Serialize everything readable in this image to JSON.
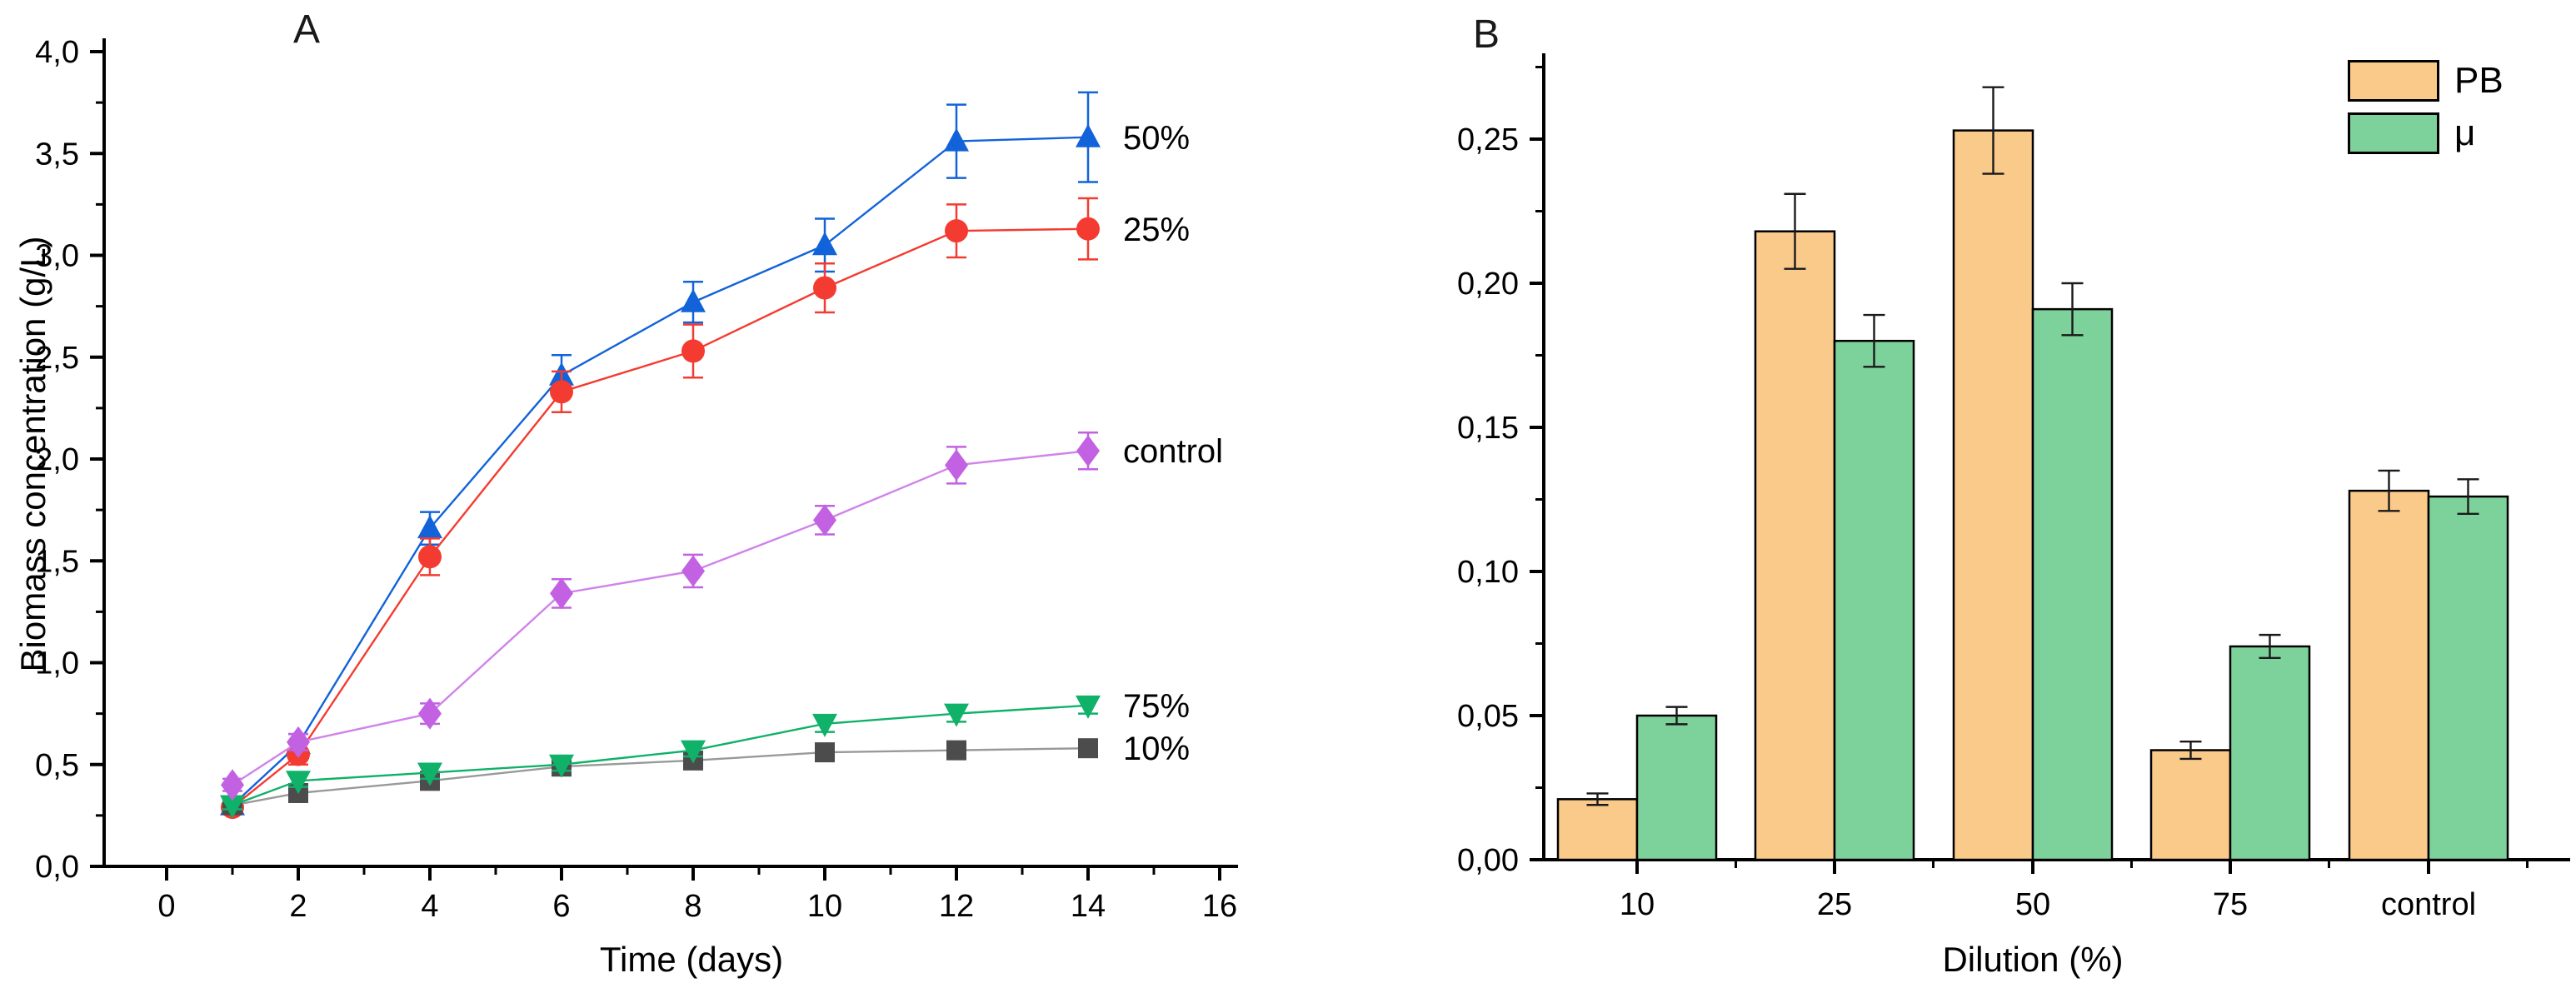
{
  "figure": {
    "background": "#ffffff"
  },
  "chart_data": [
    {
      "type": "line",
      "panel_letter": "A",
      "xlabel": "Time (days)",
      "ylabel": "Biomass concentration (g/L)",
      "x": [
        1,
        2,
        4,
        6,
        8,
        10,
        12,
        14
      ],
      "x_ticks": [
        0,
        2,
        4,
        6,
        8,
        10,
        12,
        14,
        16
      ],
      "x_tick_labels": [
        "0",
        "2",
        "4",
        "6",
        "8",
        "10",
        "12",
        "14",
        "16"
      ],
      "x_minor_ticks": [
        1,
        3,
        5,
        7,
        9,
        11,
        13,
        15
      ],
      "y_ticks": [
        0,
        0.5,
        1.0,
        1.5,
        2.0,
        2.5,
        3.0,
        3.5,
        4.0
      ],
      "y_tick_labels": [
        "0,0",
        "0,5",
        "1,0",
        "1,5",
        "2,0",
        "2,5",
        "3,0",
        "3,5",
        "4,0"
      ],
      "y_minor_ticks": [
        0.25,
        0.75,
        1.25,
        1.75,
        2.25,
        2.75,
        3.25,
        3.75
      ],
      "xlim": [
        -1,
        16.3
      ],
      "ylim": [
        0,
        4.07
      ],
      "grid": false,
      "decimal_separator": "comma",
      "series": [
        {
          "name": "50%",
          "end_label": "50%",
          "marker": "triangle-up",
          "color": "#1263D9",
          "line_color": "#1263D9",
          "values": [
            0.3,
            0.6,
            1.66,
            2.41,
            2.77,
            3.05,
            3.56,
            3.58
          ],
          "errors": [
            0.03,
            0.05,
            0.08,
            0.1,
            0.1,
            0.13,
            0.18,
            0.22
          ]
        },
        {
          "name": "25%",
          "end_label": "25%",
          "marker": "circle",
          "color": "#F43B31",
          "line_color": "#F43B31",
          "values": [
            0.29,
            0.55,
            1.52,
            2.33,
            2.53,
            2.84,
            3.12,
            3.13
          ],
          "errors": [
            0.03,
            0.05,
            0.09,
            0.1,
            0.13,
            0.12,
            0.13,
            0.15
          ]
        },
        {
          "name": "control",
          "end_label": "control",
          "marker": "diamond",
          "color": "#C262E2",
          "line_color": "#D083EA",
          "values": [
            0.4,
            0.61,
            0.75,
            1.34,
            1.45,
            1.7,
            1.97,
            2.04
          ],
          "errors": [
            0.03,
            0.04,
            0.05,
            0.07,
            0.08,
            0.07,
            0.09,
            0.09
          ]
        },
        {
          "name": "75%",
          "end_label": "75%",
          "marker": "triangle-down",
          "color": "#10B169",
          "line_color": "#10B169",
          "values": [
            0.3,
            0.42,
            0.46,
            0.5,
            0.57,
            0.7,
            0.75,
            0.79
          ],
          "errors": [
            0.02,
            0.03,
            0.03,
            0.03,
            0.03,
            0.04,
            0.04,
            0.04
          ]
        },
        {
          "name": "10%",
          "end_label": "10%",
          "marker": "square",
          "color": "#4C4C4C",
          "line_color": "#999999",
          "values": [
            0.3,
            0.36,
            0.42,
            0.49,
            0.52,
            0.56,
            0.57,
            0.58
          ],
          "errors": [
            0.02,
            0.02,
            0.02,
            0.03,
            0.03,
            0.03,
            0.03,
            0.03
          ]
        }
      ]
    },
    {
      "type": "bar",
      "panel_letter": "B",
      "xlabel": "Dilution (%)",
      "categories": [
        "10",
        "25",
        "50",
        "75",
        "control"
      ],
      "y_ticks": [
        0,
        0.05,
        0.1,
        0.15,
        0.2,
        0.25
      ],
      "y_tick_labels": [
        "0,00",
        "0,05",
        "0,10",
        "0,15",
        "0,20",
        "0,25"
      ],
      "y_minor_ticks": [
        0.025,
        0.075,
        0.125,
        0.175,
        0.225,
        0.275
      ],
      "ylim": [
        0,
        0.28
      ],
      "grid": false,
      "decimal_separator": "comma",
      "legend_position": "top-right",
      "series": [
        {
          "name": "PB",
          "fill": "#FACA8B",
          "stroke": "#000000",
          "values": [
            0.021,
            0.218,
            0.253,
            0.038,
            0.128
          ],
          "errors": [
            0.002,
            0.013,
            0.015,
            0.003,
            0.007
          ]
        },
        {
          "name": "μ",
          "fill": "#7DD29B",
          "stroke": "#000000",
          "values": [
            0.05,
            0.18,
            0.191,
            0.074,
            0.126
          ],
          "errors": [
            0.003,
            0.009,
            0.009,
            0.004,
            0.006
          ]
        }
      ]
    }
  ]
}
